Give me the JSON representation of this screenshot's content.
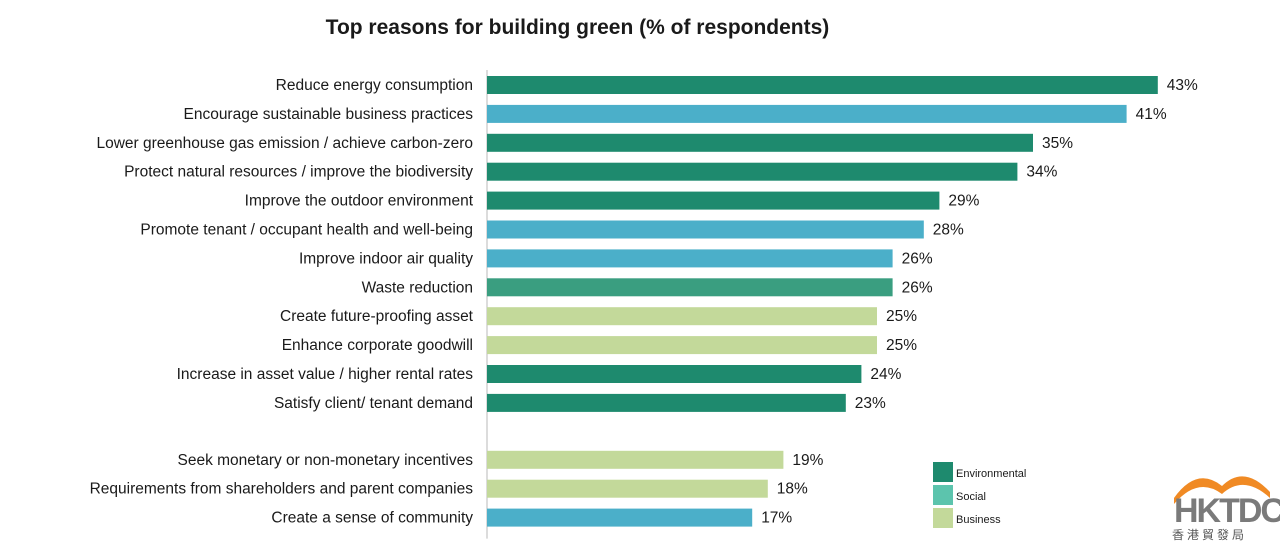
{
  "chart_data": {
    "type": "bar",
    "orientation": "horizontal",
    "title": "Top reasons for building green (% of respondents)",
    "value_suffix": "%",
    "grid": false,
    "legend_position": "bottom-right",
    "legend": [
      {
        "name": "Environmental",
        "color": "#1e8a6e"
      },
      {
        "name": "Social",
        "color": "#5cc4ad"
      },
      {
        "name": "Business",
        "color": "#c3d99a"
      }
    ],
    "bars": [
      {
        "label": "Reduce energy consumption",
        "value": 43,
        "color": "#1e8a6e"
      },
      {
        "label": "Encourage sustainable business practices",
        "value": 41,
        "color": "#4bafc9"
      },
      {
        "label": "Lower greenhouse gas emission / achieve carbon-zero",
        "value": 35,
        "color": "#1e8a6e"
      },
      {
        "label": "Protect natural resources / improve the biodiversity",
        "value": 34,
        "color": "#1e8a6e"
      },
      {
        "label": "Improve the outdoor environment",
        "value": 29,
        "color": "#1e8a6e"
      },
      {
        "label": "Promote tenant / occupant health and well-being",
        "value": 28,
        "color": "#4bafc9"
      },
      {
        "label": "Improve indoor air quality",
        "value": 26,
        "color": "#4bafc9"
      },
      {
        "label": "Waste reduction",
        "value": 26,
        "color": "#3a9e80"
      },
      {
        "label": "Create future-proofing asset",
        "value": 25,
        "color": "#c3d99a"
      },
      {
        "label": "Enhance corporate goodwill",
        "value": 25,
        "color": "#c3d99a"
      },
      {
        "label": "Increase in asset value / higher rental rates",
        "value": 24,
        "color": "#1e8a6e"
      },
      {
        "label": "Satisfy client/ tenant demand",
        "value": 23,
        "color": "#1e8a6e"
      },
      {
        "label": "Seek monetary or non-monetary incentives",
        "value": 19,
        "color": "#c3d99a"
      },
      {
        "label": "Requirements from shareholders and parent companies",
        "value": 18,
        "color": "#c3d99a"
      },
      {
        "label": "Create a sense of community",
        "value": 17,
        "color": "#4bafc9"
      }
    ]
  },
  "logo": {
    "latin": "HKTDC",
    "cjk": "香港貿發局",
    "accent_color": "#f08a24"
  }
}
